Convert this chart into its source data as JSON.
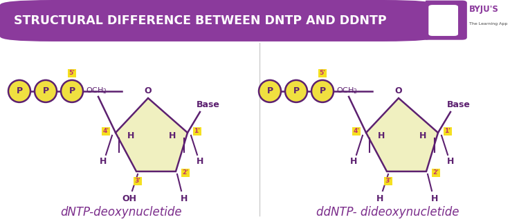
{
  "title": "STRUCTURAL DIFFERENCE BETWEEN DNTP AND DDNTP",
  "title_bg": "#8B3A9C",
  "title_color": "#FFFFFF",
  "title_fontsize": 12.5,
  "label_left": "dNTP-deoxynucletide",
  "label_right": "ddNTP- dideoxynucletide",
  "label_color": "#7B2D8B",
  "label_fontsize": 12,
  "ring_fill": "#F0F0C0",
  "ring_edge": "#5C2070",
  "p_fill": "#F0E040",
  "p_edge": "#5C2070",
  "line_color": "#5C2070",
  "text_color": "#5C2070",
  "text_color_pink": "#C0306A",
  "yellow_bg": "#F5E020",
  "bg_color": "#FFFFFF"
}
